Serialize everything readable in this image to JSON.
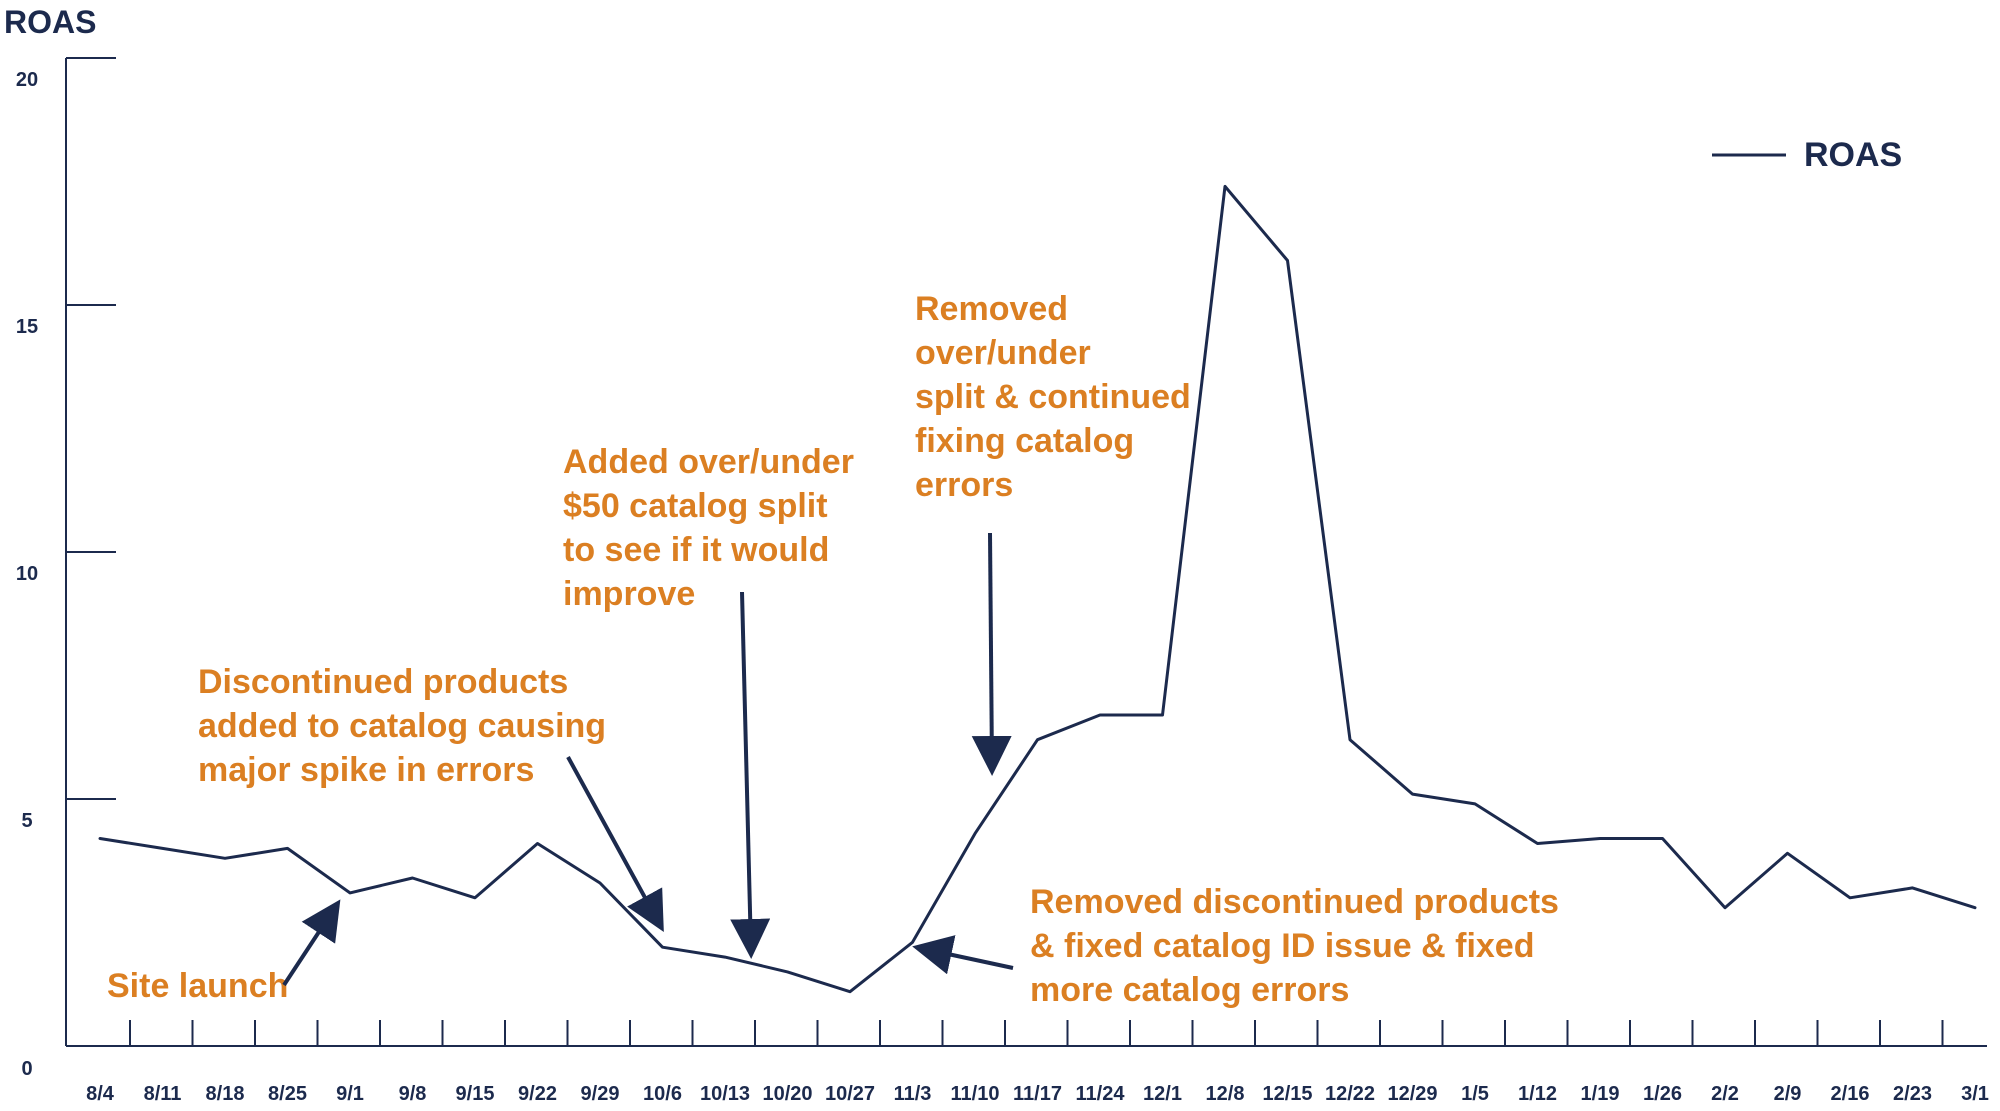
{
  "chart_data": {
    "type": "line",
    "title": "",
    "xlabel": "",
    "ylabel": "ROAS",
    "ylim": [
      0,
      20
    ],
    "yticks": [
      "0",
      "5",
      "10",
      "15",
      "20"
    ],
    "categories": [
      "8/4",
      "8/11",
      "8/18",
      "8/25",
      "9/1",
      "9/8",
      "9/15",
      "9/22",
      "9/29",
      "10/6",
      "10/13",
      "10/20",
      "10/27",
      "11/3",
      "11/10",
      "11/17",
      "11/24",
      "12/1",
      "12/8",
      "12/15",
      "12/22",
      "12/29",
      "1/5",
      "1/12",
      "1/19",
      "1/26",
      "2/2",
      "2/9",
      "2/16",
      "2/23",
      "3/1"
    ],
    "series": [
      {
        "name": "ROAS",
        "values": [
          4.2,
          4.0,
          3.8,
          4.0,
          3.1,
          3.4,
          3.0,
          4.1,
          3.3,
          2.0,
          1.8,
          1.5,
          1.1,
          2.1,
          4.3,
          6.2,
          6.7,
          6.7,
          17.4,
          15.9,
          6.2,
          5.1,
          4.9,
          4.1,
          4.2,
          4.2,
          2.8,
          3.9,
          3.0,
          3.2,
          2.8
        ]
      }
    ],
    "legend": {
      "label": "ROAS",
      "position": "top-right"
    },
    "annotation_color": "#db7f22",
    "line_color": "#1c2a4d",
    "grid": false,
    "annotations": [
      {
        "lines": [
          "Site launch"
        ],
        "points_to": "9/1"
      },
      {
        "lines": [
          "Discontinued products",
          "added to catalog causing",
          "major spike in errors"
        ],
        "points_to": "10/6"
      },
      {
        "lines": [
          "Added over/under",
          "$50 catalog split",
          "to see if it would",
          "improve"
        ],
        "points_to": "10/13"
      },
      {
        "lines": [
          "Removed",
          "over/under",
          "split & continued",
          "fixing catalog",
          "errors"
        ],
        "points_to": "11/10"
      },
      {
        "lines": [
          "Removed discontinued products",
          "& fixed catalog ID issue & fixed",
          "more catalog errors"
        ],
        "points_to": "11/3"
      }
    ]
  }
}
